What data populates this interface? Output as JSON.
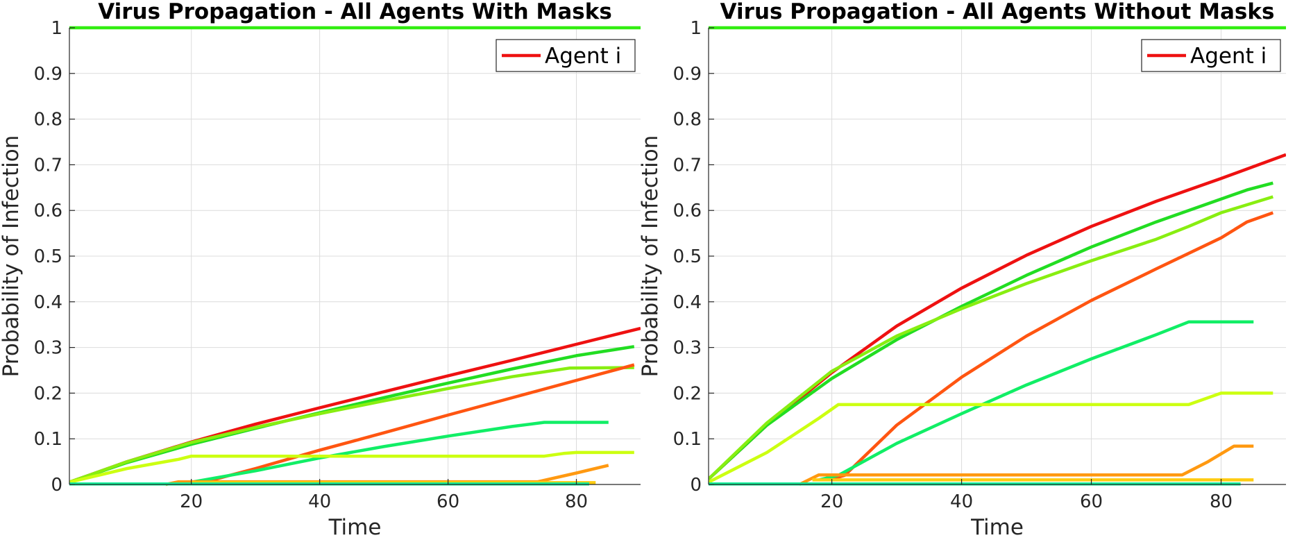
{
  "chart_data": [
    {
      "type": "line",
      "title": "Virus Propagation - All Agents With Masks",
      "xlabel": "Time",
      "ylabel": "Probability of Infection",
      "xlim": [
        1,
        90
      ],
      "ylim": [
        0,
        1
      ],
      "xticks": [
        20,
        40,
        60,
        80
      ],
      "yticks": [
        0,
        0.1,
        0.2,
        0.3,
        0.4,
        0.5,
        0.6,
        0.7,
        0.8,
        0.9,
        1
      ],
      "grid": true,
      "legend": {
        "position": "top-right",
        "entries": [
          {
            "label": "Agent i",
            "color": "#ee1111"
          }
        ]
      },
      "series": [
        {
          "color": "#33ee11",
          "x": [
            1,
            90
          ],
          "y": [
            1,
            1
          ]
        },
        {
          "color": "#ee1111",
          "x": [
            1,
            10,
            20,
            30,
            40,
            50,
            60,
            70,
            80,
            90
          ],
          "y": [
            0.005,
            0.05,
            0.093,
            0.132,
            0.168,
            0.203,
            0.238,
            0.272,
            0.307,
            0.342
          ]
        },
        {
          "color": "#22dd22",
          "x": [
            1,
            10,
            20,
            30,
            40,
            50,
            60,
            70,
            80,
            89
          ],
          "y": [
            0.005,
            0.048,
            0.088,
            0.123,
            0.157,
            0.19,
            0.222,
            0.253,
            0.282,
            0.302
          ]
        },
        {
          "color": "#88ee11",
          "x": [
            1,
            10,
            20,
            30,
            40,
            50,
            60,
            70,
            79,
            89
          ],
          "y": [
            0.005,
            0.05,
            0.092,
            0.125,
            0.155,
            0.183,
            0.21,
            0.236,
            0.255,
            0.256
          ]
        },
        {
          "color": "#ff5511",
          "x": [
            22,
            30,
            40,
            50,
            60,
            70,
            80,
            89
          ],
          "y": [
            0.005,
            0.035,
            0.075,
            0.113,
            0.152,
            0.19,
            0.228,
            0.262
          ]
        },
        {
          "color": "#11ee66",
          "x": [
            20,
            30,
            40,
            50,
            60,
            70,
            75,
            85
          ],
          "y": [
            0.005,
            0.03,
            0.058,
            0.083,
            0.106,
            0.127,
            0.136,
            0.136
          ]
        },
        {
          "color": "#ccff11",
          "x": [
            1,
            10,
            18,
            20,
            30,
            40,
            50,
            60,
            70,
            75,
            78,
            80,
            89
          ],
          "y": [
            0.005,
            0.035,
            0.055,
            0.062,
            0.062,
            0.062,
            0.062,
            0.062,
            0.062,
            0.062,
            0.068,
            0.07,
            0.07
          ]
        },
        {
          "color": "#ff9911",
          "x": [
            16,
            18,
            30,
            40,
            50,
            60,
            70,
            74,
            80,
            85
          ],
          "y": [
            0,
            0.006,
            0.006,
            0.006,
            0.006,
            0.006,
            0.006,
            0.006,
            0.025,
            0.042
          ]
        },
        {
          "color": "#ffcc11",
          "x": [
            20,
            40,
            60,
            80,
            83
          ],
          "y": [
            0.004,
            0.004,
            0.004,
            0.004,
            0.004
          ]
        },
        {
          "color": "#11ee99",
          "x": [
            1,
            82
          ],
          "y": [
            0.001,
            0.001
          ]
        }
      ]
    },
    {
      "type": "line",
      "title": "Virus Propagation - All Agents Without Masks",
      "xlabel": "Time",
      "ylabel": "Probability of Infection",
      "xlim": [
        1,
        90
      ],
      "ylim": [
        0,
        1
      ],
      "xticks": [
        20,
        40,
        60,
        80
      ],
      "yticks": [
        0,
        0.1,
        0.2,
        0.3,
        0.4,
        0.5,
        0.6,
        0.7,
        0.8,
        0.9,
        1
      ],
      "grid": true,
      "legend": {
        "position": "top-right",
        "entries": [
          {
            "label": "Agent i",
            "color": "#ee1111"
          }
        ]
      },
      "series": [
        {
          "color": "#33ee11",
          "x": [
            1,
            90
          ],
          "y": [
            1,
            1
          ]
        },
        {
          "color": "#ee1111",
          "x": [
            1,
            10,
            20,
            30,
            40,
            50,
            60,
            70,
            80,
            90
          ],
          "y": [
            0.012,
            0.13,
            0.245,
            0.347,
            0.43,
            0.502,
            0.565,
            0.62,
            0.67,
            0.722
          ]
        },
        {
          "color": "#22dd22",
          "x": [
            1,
            10,
            20,
            30,
            40,
            50,
            60,
            70,
            80,
            84,
            88
          ],
          "y": [
            0.012,
            0.13,
            0.232,
            0.317,
            0.39,
            0.458,
            0.52,
            0.575,
            0.625,
            0.645,
            0.66
          ]
        },
        {
          "color": "#88ee11",
          "x": [
            1,
            10,
            20,
            30,
            40,
            50,
            60,
            70,
            75,
            80,
            88
          ],
          "y": [
            0.012,
            0.135,
            0.248,
            0.325,
            0.385,
            0.44,
            0.49,
            0.537,
            0.565,
            0.595,
            0.63
          ]
        },
        {
          "color": "#ff5511",
          "x": [
            20,
            22,
            30,
            40,
            50,
            60,
            70,
            80,
            84,
            88
          ],
          "y": [
            0.012,
            0.02,
            0.13,
            0.235,
            0.325,
            0.403,
            0.472,
            0.54,
            0.575,
            0.595
          ]
        },
        {
          "color": "#11ee66",
          "x": [
            18,
            21,
            30,
            40,
            50,
            60,
            70,
            75,
            85
          ],
          "y": [
            0.01,
            0.02,
            0.09,
            0.155,
            0.218,
            0.275,
            0.328,
            0.356,
            0.356
          ]
        },
        {
          "color": "#ccff11",
          "x": [
            1,
            10,
            18,
            21,
            30,
            40,
            50,
            60,
            70,
            75,
            78,
            80,
            88
          ],
          "y": [
            0.005,
            0.07,
            0.145,
            0.175,
            0.175,
            0.175,
            0.175,
            0.175,
            0.175,
            0.175,
            0.19,
            0.2,
            0.2
          ]
        },
        {
          "color": "#ff9911",
          "x": [
            15,
            18,
            30,
            40,
            50,
            60,
            70,
            74,
            78,
            82,
            85
          ],
          "y": [
            0,
            0.021,
            0.021,
            0.021,
            0.021,
            0.021,
            0.021,
            0.021,
            0.05,
            0.084,
            0.084
          ]
        },
        {
          "color": "#ffcc11",
          "x": [
            17,
            20,
            40,
            60,
            80,
            85
          ],
          "y": [
            0.01,
            0.01,
            0.01,
            0.01,
            0.01,
            0.01
          ]
        },
        {
          "color": "#11ee99",
          "x": [
            1,
            83
          ],
          "y": [
            0.001,
            0.001
          ]
        }
      ]
    }
  ]
}
